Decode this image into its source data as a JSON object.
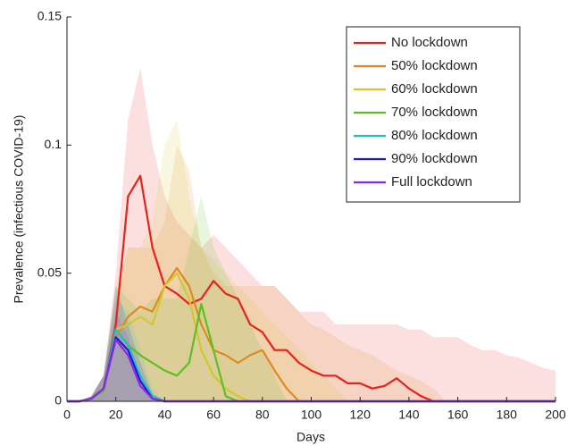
{
  "chart_data": {
    "type": "line",
    "xlabel": "Days",
    "ylabel": "Prevalence (infectious COVID-19)",
    "xlim": [
      0,
      200
    ],
    "xticks": [
      0,
      20,
      40,
      60,
      80,
      100,
      120,
      140,
      160,
      180,
      200
    ],
    "ylim": [
      0,
      0.15
    ],
    "yticks": [
      0,
      0.05,
      0.1,
      0.15
    ],
    "legend": "top-right",
    "x": [
      0,
      5,
      10,
      15,
      20,
      25,
      30,
      35,
      40,
      45,
      50,
      55,
      60,
      65,
      70,
      75,
      80,
      85,
      90,
      95,
      100,
      105,
      110,
      115,
      120,
      125,
      130,
      135,
      140,
      145,
      150,
      155,
      160,
      165,
      170,
      175,
      180,
      185,
      190,
      195,
      200
    ],
    "series": [
      {
        "name": "No lockdown",
        "color": "#e6221c",
        "values": [
          0,
          0,
          0.001,
          0.005,
          0.03,
          0.08,
          0.088,
          0.06,
          0.045,
          0.042,
          0.038,
          0.04,
          0.047,
          0.042,
          0.04,
          0.03,
          0.027,
          0.02,
          0.02,
          0.015,
          0.012,
          0.01,
          0.01,
          0.007,
          0.007,
          0.005,
          0.006,
          0.009,
          0.005,
          0.002,
          0,
          0,
          0,
          0,
          0,
          0,
          0,
          0,
          0,
          0,
          0
        ],
        "upper": [
          0,
          0,
          0.002,
          0.01,
          0.05,
          0.11,
          0.13,
          0.1,
          0.08,
          0.07,
          0.065,
          0.06,
          0.065,
          0.06,
          0.055,
          0.05,
          0.045,
          0.045,
          0.04,
          0.035,
          0.035,
          0.035,
          0.03,
          0.03,
          0.03,
          0.03,
          0.03,
          0.03,
          0.028,
          0.028,
          0.025,
          0.025,
          0.025,
          0.022,
          0.02,
          0.02,
          0.018,
          0.017,
          0.015,
          0.013,
          0.012
        ]
      },
      {
        "name": "50% lockdown",
        "color": "#e08a1e",
        "values": [
          0,
          0,
          0.001,
          0.004,
          0.025,
          0.033,
          0.037,
          0.035,
          0.045,
          0.052,
          0.045,
          0.03,
          0.02,
          0.018,
          0.015,
          0.018,
          0.02,
          0.012,
          0.005,
          0,
          0,
          0,
          0,
          0,
          0,
          0,
          0,
          0,
          0,
          0,
          0,
          0,
          0,
          0,
          0,
          0,
          0,
          0,
          0,
          0,
          0
        ],
        "upper": [
          0,
          0,
          0.002,
          0.01,
          0.04,
          0.06,
          0.06,
          0.06,
          0.07,
          0.1,
          0.09,
          0.06,
          0.05,
          0.045,
          0.045,
          0.045,
          0.045,
          0.045,
          0.04,
          0.035,
          0.03,
          0.028,
          0.025,
          0.022,
          0.02,
          0.018,
          0.015,
          0.012,
          0.01,
          0.008,
          0.005,
          0,
          0,
          0,
          0,
          0,
          0,
          0,
          0,
          0,
          0
        ]
      },
      {
        "name": "60% lockdown",
        "color": "#d4c62e",
        "values": [
          0,
          0,
          0.001,
          0.004,
          0.028,
          0.03,
          0.033,
          0.03,
          0.045,
          0.05,
          0.04,
          0.02,
          0.01,
          0.005,
          0.002,
          0,
          0,
          0,
          0,
          0,
          0,
          0,
          0,
          0,
          0,
          0,
          0,
          0,
          0,
          0,
          0,
          0,
          0,
          0,
          0,
          0,
          0,
          0,
          0,
          0,
          0
        ],
        "upper": [
          0,
          0,
          0.002,
          0.01,
          0.045,
          0.06,
          0.06,
          0.07,
          0.1,
          0.11,
          0.08,
          0.06,
          0.055,
          0.05,
          0.045,
          0.04,
          0.035,
          0.03,
          0.025,
          0.02,
          0.015,
          0.01,
          0.005,
          0,
          0,
          0,
          0,
          0,
          0,
          0,
          0,
          0,
          0,
          0,
          0,
          0,
          0,
          0,
          0,
          0,
          0
        ]
      },
      {
        "name": "70% lockdown",
        "color": "#5cc020",
        "values": [
          0,
          0,
          0.001,
          0.004,
          0.028,
          0.022,
          0.018,
          0.015,
          0.012,
          0.01,
          0.015,
          0.038,
          0.02,
          0.002,
          0,
          0,
          0,
          0,
          0,
          0,
          0,
          0,
          0,
          0,
          0,
          0,
          0,
          0,
          0,
          0,
          0,
          0,
          0,
          0,
          0,
          0,
          0,
          0,
          0,
          0,
          0
        ],
        "upper": [
          0,
          0,
          0.002,
          0.01,
          0.045,
          0.04,
          0.035,
          0.04,
          0.04,
          0.04,
          0.06,
          0.08,
          0.06,
          0.05,
          0.04,
          0.03,
          0.02,
          0.01,
          0,
          0,
          0,
          0,
          0,
          0,
          0,
          0,
          0,
          0,
          0,
          0,
          0,
          0,
          0,
          0,
          0,
          0,
          0,
          0,
          0,
          0,
          0
        ]
      },
      {
        "name": "80% lockdown",
        "color": "#22c0c0",
        "values": [
          0,
          0,
          0.001,
          0.005,
          0.028,
          0.022,
          0.01,
          0.002,
          0,
          0,
          0,
          0,
          0,
          0,
          0,
          0,
          0,
          0,
          0,
          0,
          0,
          0,
          0,
          0,
          0,
          0,
          0,
          0,
          0,
          0,
          0,
          0,
          0,
          0,
          0,
          0,
          0,
          0,
          0,
          0,
          0
        ],
        "upper": [
          0,
          0,
          0.002,
          0.01,
          0.04,
          0.035,
          0.02,
          0.005,
          0,
          0,
          0,
          0,
          0,
          0,
          0,
          0,
          0,
          0,
          0,
          0,
          0,
          0,
          0,
          0,
          0,
          0,
          0,
          0,
          0,
          0,
          0,
          0,
          0,
          0,
          0,
          0,
          0,
          0,
          0,
          0,
          0
        ]
      },
      {
        "name": "90% lockdown",
        "color": "#1a1ae0",
        "values": [
          0,
          0,
          0.001,
          0.005,
          0.025,
          0.02,
          0.008,
          0.001,
          0,
          0,
          0,
          0,
          0,
          0,
          0,
          0,
          0,
          0,
          0,
          0,
          0,
          0,
          0,
          0,
          0,
          0,
          0,
          0,
          0,
          0,
          0,
          0,
          0,
          0,
          0,
          0,
          0,
          0,
          0,
          0,
          0
        ],
        "upper": [
          0,
          0,
          0.002,
          0.01,
          0.045,
          0.03,
          0.015,
          0.003,
          0,
          0,
          0,
          0,
          0,
          0,
          0,
          0,
          0,
          0,
          0,
          0,
          0,
          0,
          0,
          0,
          0,
          0,
          0,
          0,
          0,
          0,
          0,
          0,
          0,
          0,
          0,
          0,
          0,
          0,
          0,
          0,
          0
        ]
      },
      {
        "name": "Full lockdown",
        "color": "#8a2be2",
        "values": [
          0,
          0,
          0.001,
          0.005,
          0.024,
          0.018,
          0.006,
          0.001,
          0,
          0,
          0,
          0,
          0,
          0,
          0,
          0,
          0,
          0,
          0,
          0,
          0,
          0,
          0,
          0,
          0,
          0,
          0,
          0,
          0,
          0,
          0,
          0,
          0,
          0,
          0,
          0,
          0,
          0,
          0,
          0,
          0
        ],
        "upper": [
          0,
          0,
          0.002,
          0.01,
          0.035,
          0.025,
          0.01,
          0.002,
          0,
          0,
          0,
          0,
          0,
          0,
          0,
          0,
          0,
          0,
          0,
          0,
          0,
          0,
          0,
          0,
          0,
          0,
          0,
          0,
          0,
          0,
          0,
          0,
          0,
          0,
          0,
          0,
          0,
          0,
          0,
          0,
          0
        ]
      }
    ]
  }
}
